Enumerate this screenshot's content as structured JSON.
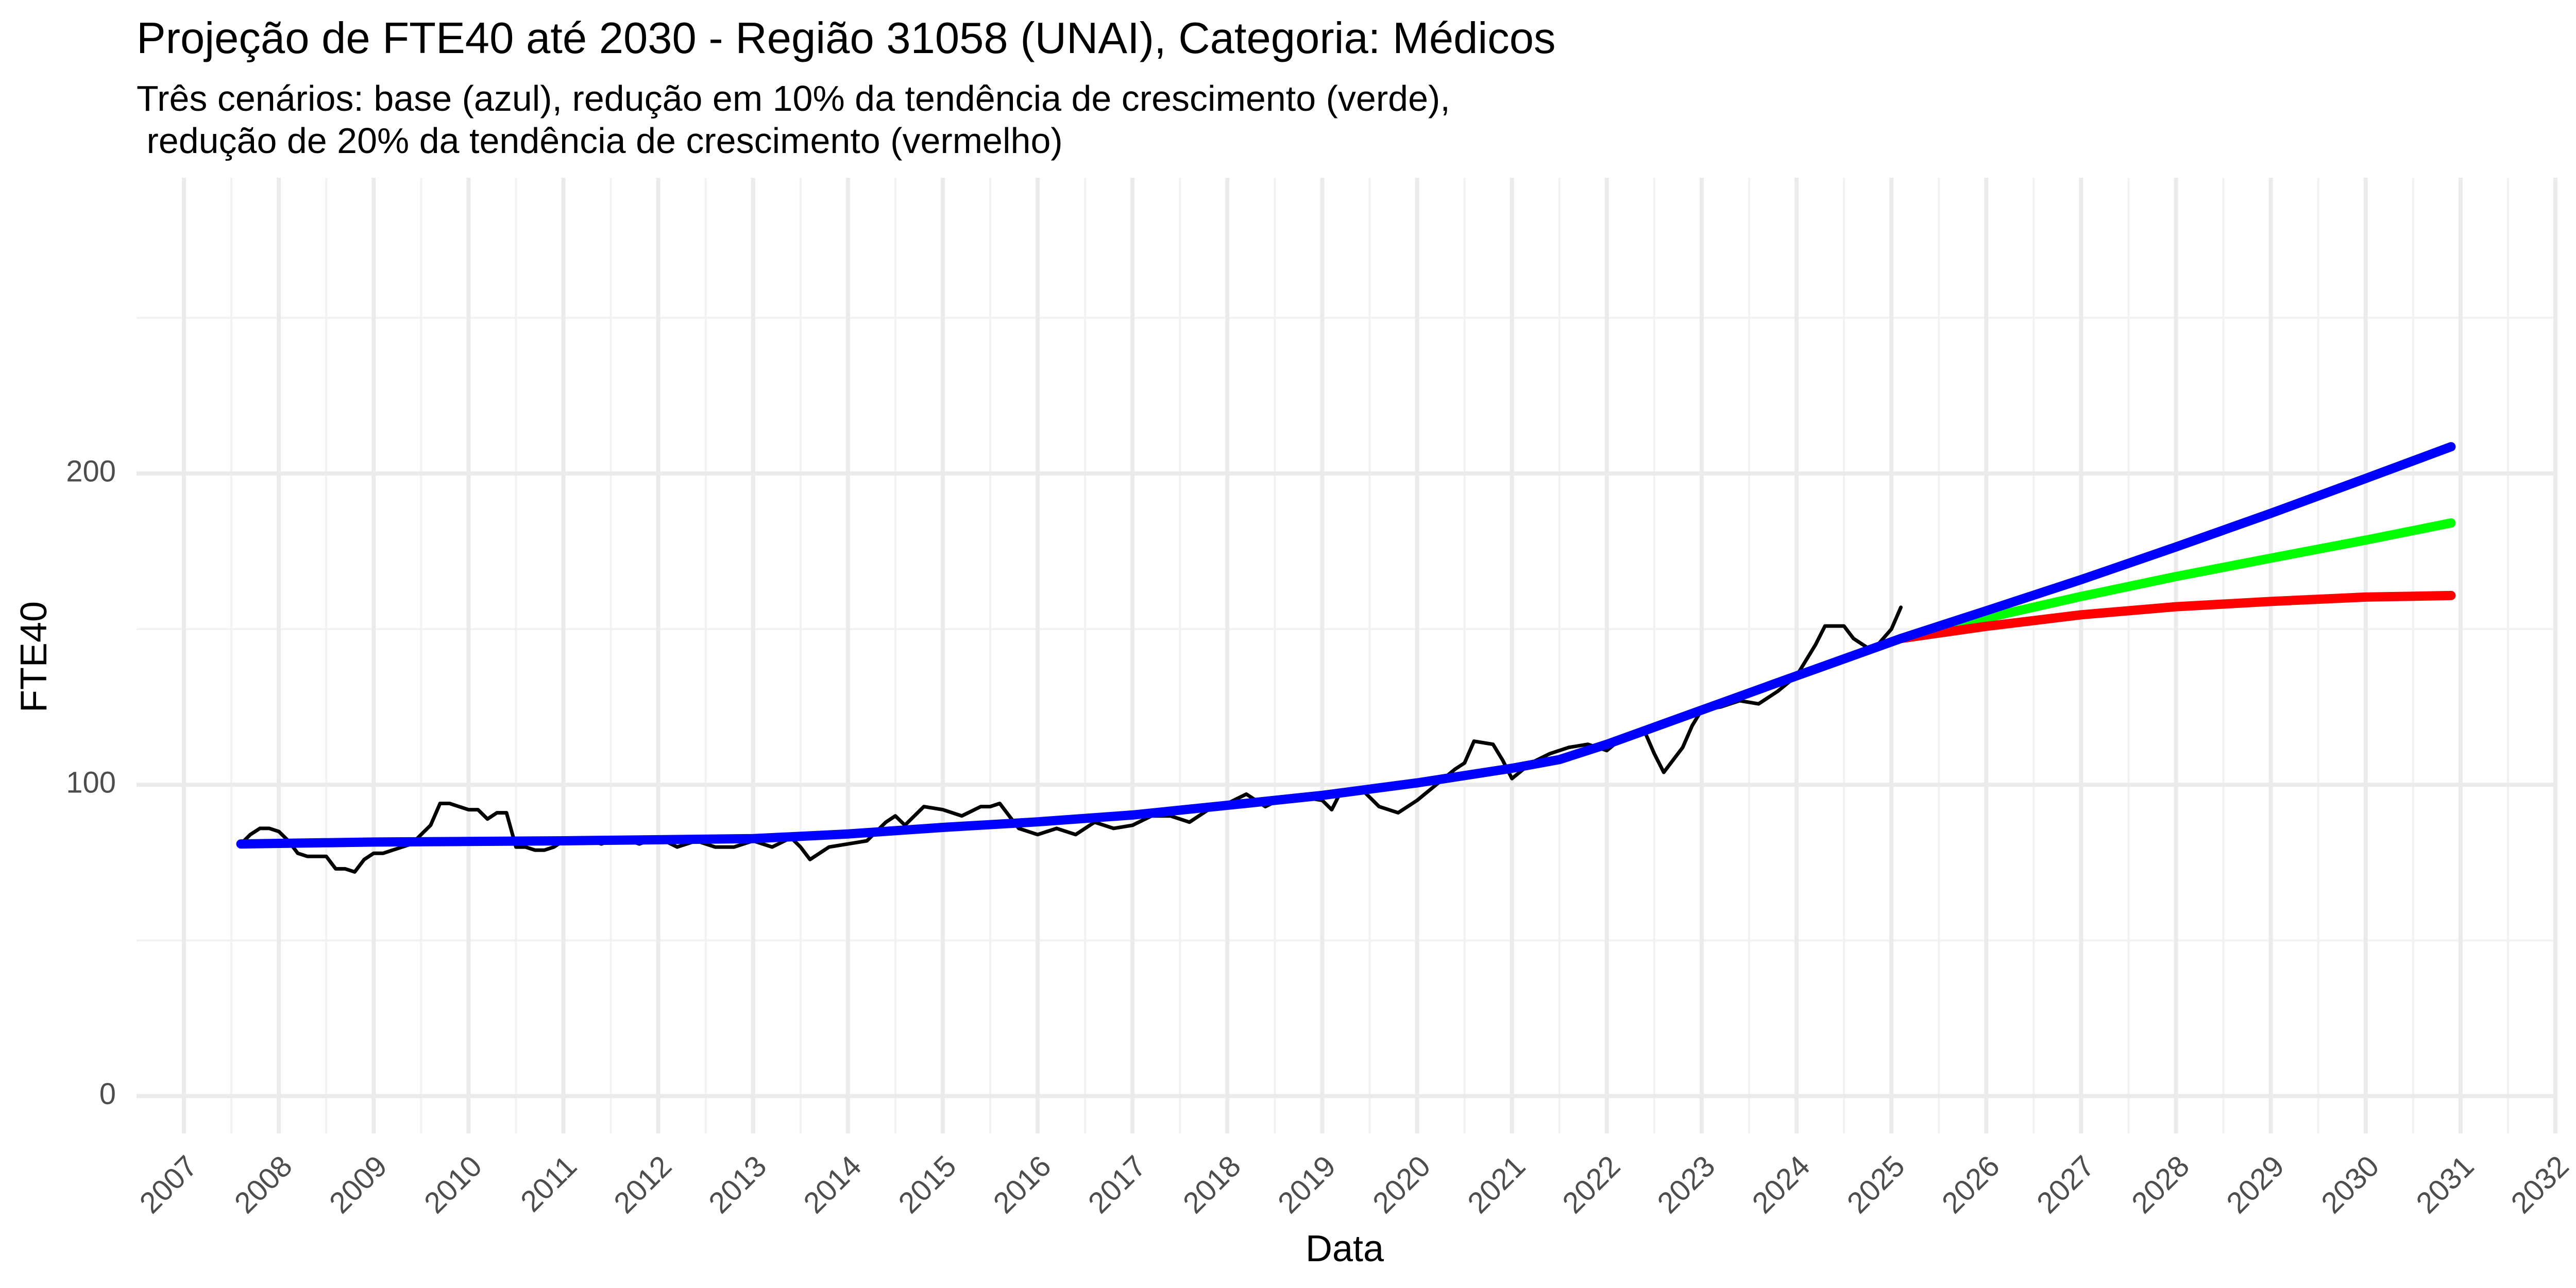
{
  "chart_data": {
    "type": "line",
    "title": "Projeção de FTE40 até 2030 - Região 31058 (UNAI), Categoria: Médicos",
    "subtitle": [
      "Três cenários: base (azul), redução em 10% da tendência de crescimento (verde),",
      " redução de 20% da tendência de crescimento (vermelho)"
    ],
    "xlabel": "Data",
    "ylabel": "FTE40",
    "xlim": [
      2006.5,
      2032.0
    ],
    "ylim": [
      -12,
      295
    ],
    "x_ticks": [
      2007,
      2008,
      2009,
      2010,
      2011,
      2012,
      2013,
      2014,
      2015,
      2016,
      2017,
      2018,
      2019,
      2020,
      2021,
      2022,
      2023,
      2024,
      2025,
      2026,
      2027,
      2028,
      2029,
      2030,
      2031,
      2032
    ],
    "x_tick_labels": [
      "2007",
      "2008",
      "2009",
      "2010",
      "2011",
      "2012",
      "2013",
      "2014",
      "2015",
      "2016",
      "2017",
      "2018",
      "2019",
      "2020",
      "2021",
      "2022",
      "2023",
      "2024",
      "2025",
      "2026",
      "2027",
      "2028",
      "2029",
      "2030",
      "2031",
      "2032"
    ],
    "y_ticks": [
      0,
      100,
      200
    ],
    "y_tick_labels": [
      "0",
      "100",
      "200"
    ],
    "y_minor": [
      50,
      150,
      250
    ],
    "grid": true,
    "series": [
      {
        "color": "#000000",
        "x": [
          2007.6,
          2007.7,
          2007.8,
          2007.9,
          2008.0,
          2008.1,
          2008.2,
          2008.3,
          2008.4,
          2008.5,
          2008.6,
          2008.7,
          2008.8,
          2008.9,
          2009.0,
          2009.1,
          2009.2,
          2009.3,
          2009.4,
          2009.5,
          2009.6,
          2009.7,
          2009.8,
          2009.9,
          2010.0,
          2010.1,
          2010.2,
          2010.3,
          2010.4,
          2010.5,
          2010.6,
          2010.7,
          2010.8,
          2010.9,
          2011.0,
          2011.2,
          2011.4,
          2011.6,
          2011.8,
          2012.0,
          2012.2,
          2012.4,
          2012.6,
          2012.8,
          2013.0,
          2013.2,
          2013.4,
          2013.5,
          2013.6,
          2013.8,
          2014.0,
          2014.2,
          2014.4,
          2014.5,
          2014.6,
          2014.8,
          2015.0,
          2015.2,
          2015.4,
          2015.5,
          2015.6,
          2015.8,
          2016.0,
          2016.2,
          2016.4,
          2016.6,
          2016.8,
          2017.0,
          2017.2,
          2017.4,
          2017.6,
          2017.8,
          2018.0,
          2018.2,
          2018.4,
          2018.6,
          2018.8,
          2019.0,
          2019.1,
          2019.2,
          2019.4,
          2019.6,
          2019.8,
          2020.0,
          2020.2,
          2020.4,
          2020.5,
          2020.6,
          2020.8,
          2020.9,
          2021.0,
          2021.2,
          2021.4,
          2021.6,
          2021.8,
          2022.0,
          2022.2,
          2022.4,
          2022.5,
          2022.6,
          2022.8,
          2022.9,
          2023.0,
          2023.2,
          2023.4,
          2023.6,
          2023.8,
          2024.0,
          2024.2,
          2024.3,
          2024.5,
          2024.6,
          2024.8,
          2025.0,
          2025.1
        ],
        "values": [
          81,
          84,
          86,
          86,
          85,
          82,
          78,
          77,
          77,
          77,
          73,
          73,
          72,
          76,
          78,
          78,
          79,
          80,
          81,
          84,
          87,
          94,
          94,
          93,
          92,
          92,
          89,
          91,
          91,
          80,
          80,
          79,
          79,
          80,
          82,
          83,
          81,
          83,
          81,
          83,
          80,
          82,
          80,
          80,
          82,
          80,
          83,
          80,
          76,
          80,
          81,
          82,
          88,
          90,
          87,
          93,
          92,
          90,
          93,
          93,
          94,
          86,
          84,
          86,
          84,
          88,
          86,
          87,
          90,
          90,
          88,
          92,
          94,
          97,
          93,
          96,
          96,
          95,
          92,
          98,
          99,
          93,
          91,
          95,
          100,
          105,
          107,
          114,
          113,
          108,
          102,
          107,
          110,
          112,
          113,
          111,
          116,
          117,
          110,
          104,
          112,
          119,
          124,
          125,
          127,
          126,
          130,
          135,
          145,
          151,
          151,
          147,
          143,
          150,
          157
        ]
      },
      {
        "color": "#0000ff",
        "x": [
          2007.6,
          2009,
          2011,
          2013,
          2014,
          2015,
          2016,
          2017,
          2018,
          2019,
          2020,
          2021,
          2021.5,
          2022,
          2023,
          2024,
          2025.1,
          2026,
          2027,
          2028,
          2029,
          2030,
          2030.9
        ],
        "values": [
          81,
          81.6,
          82,
          82.7,
          84.2,
          86.3,
          88.1,
          90.3,
          93.4,
          96.6,
          100.6,
          105.3,
          108.1,
          113,
          124,
          135,
          147,
          155.9,
          165.9,
          176.4,
          187.2,
          198.4,
          208.6
        ]
      },
      {
        "color": "#00ff00",
        "x": [
          2025.1,
          2026,
          2027,
          2028,
          2029,
          2030,
          2030.9
        ],
        "values": [
          147,
          153.6,
          160.5,
          166.9,
          172.8,
          178.6,
          184.1
        ]
      },
      {
        "color": "#ff0000",
        "x": [
          2025.1,
          2026,
          2027,
          2028,
          2029,
          2030,
          2030.9
        ],
        "values": [
          147,
          150.9,
          154.6,
          157.2,
          158.9,
          160.3,
          160.8
        ]
      }
    ]
  }
}
